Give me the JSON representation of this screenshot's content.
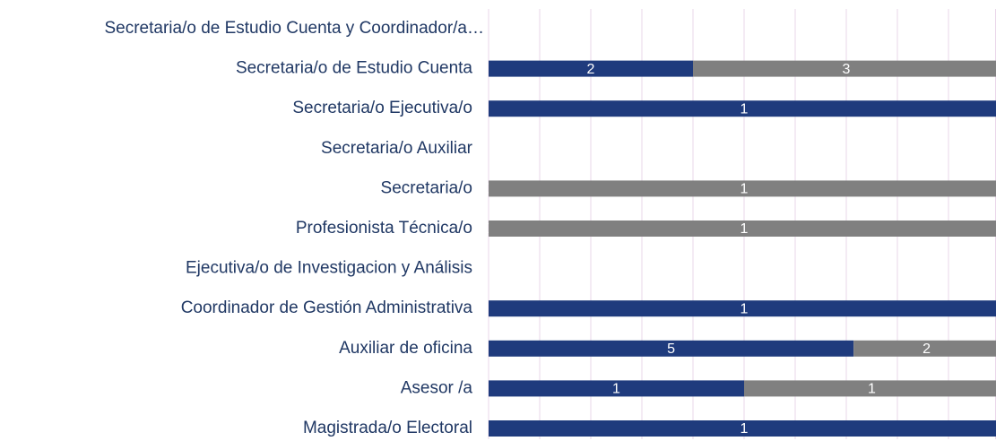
{
  "chart_data": {
    "type": "bar_stacked_percent_horizontal",
    "categories": [
      "Secretaria/o de Estudio Cuenta y Coordinador/a…",
      "Secretaria/o de Estudio Cuenta",
      "Secretaria/o Ejecutiva/o",
      "Secretaria/o Auxiliar",
      "Secretaria/o",
      "Profesionista Técnica/o",
      "Ejecutiva/o de Investigacion y Análisis",
      "Coordinador de Gestión Administrativa",
      "Auxiliar de oficina",
      "Asesor /a",
      "Magistrada/o Electoral"
    ],
    "series": [
      {
        "color": "#1f3b7d",
        "values": [
          null,
          2,
          1,
          null,
          0,
          0,
          null,
          1,
          5,
          1,
          1
        ]
      },
      {
        "color": "#808080",
        "values": [
          null,
          3,
          null,
          null,
          1,
          1,
          null,
          null,
          2,
          1,
          null
        ]
      }
    ],
    "xlim": [
      0,
      100
    ],
    "xticks": [
      0,
      10,
      20,
      30,
      40,
      50,
      60,
      70,
      80,
      90,
      100
    ],
    "grid": true
  }
}
